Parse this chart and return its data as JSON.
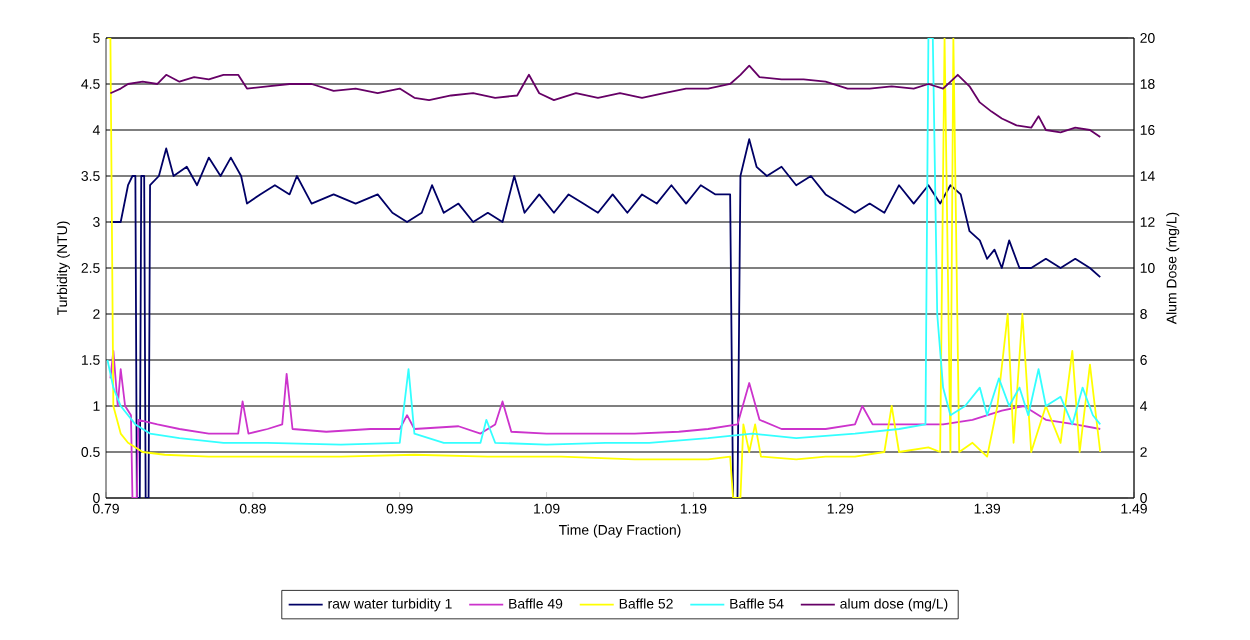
{
  "chart_data": {
    "type": "line",
    "xlabel": "Time (Day Fraction)",
    "ylabel": "Turbidity (NTU)",
    "y2label": "Alum Dose (mg/L)",
    "xlim": [
      0.79,
      1.49
    ],
    "xticks": [
      0.79,
      0.89,
      0.99,
      1.09,
      1.19,
      1.29,
      1.39,
      1.49
    ],
    "ylim": [
      0,
      5
    ],
    "yticks": [
      0,
      0.5,
      1,
      1.5,
      2,
      2.5,
      3,
      3.5,
      4,
      4.5,
      5
    ],
    "y2lim": [
      0,
      20
    ],
    "y2ticks": [
      0,
      2,
      4,
      6,
      8,
      10,
      12,
      14,
      16,
      18,
      20
    ],
    "grid": "y",
    "legend": "bottom",
    "marker": "none",
    "line_style": "solid",
    "series": [
      {
        "name": "raw water turbidity 1",
        "color": "#000066",
        "x": [
          0.793,
          0.8,
          0.805,
          0.808,
          0.81,
          0.811,
          0.813,
          0.814,
          0.816,
          0.817,
          0.819,
          0.82,
          0.826,
          0.831,
          0.836,
          0.845,
          0.852,
          0.86,
          0.868,
          0.875,
          0.882,
          0.886,
          0.895,
          0.905,
          0.915,
          0.92,
          0.93,
          0.945,
          0.96,
          0.975,
          0.985,
          0.995,
          1.005,
          1.012,
          1.02,
          1.03,
          1.04,
          1.05,
          1.06,
          1.068,
          1.075,
          1.085,
          1.095,
          1.105,
          1.115,
          1.125,
          1.135,
          1.145,
          1.155,
          1.165,
          1.175,
          1.185,
          1.195,
          1.205,
          1.215,
          1.217,
          1.22,
          1.222,
          1.228,
          1.233,
          1.24,
          1.25,
          1.26,
          1.27,
          1.28,
          1.29,
          1.3,
          1.31,
          1.32,
          1.33,
          1.34,
          1.35,
          1.358,
          1.365,
          1.372,
          1.378,
          1.385,
          1.39,
          1.395,
          1.4,
          1.405,
          1.412,
          1.42,
          1.43,
          1.44,
          1.45,
          1.46,
          1.467
        ],
        "values": [
          3.0,
          3.0,
          3.4,
          3.5,
          3.5,
          0,
          0,
          3.5,
          3.5,
          0,
          0,
          3.4,
          3.5,
          3.8,
          3.5,
          3.6,
          3.4,
          3.7,
          3.5,
          3.7,
          3.5,
          3.2,
          3.3,
          3.4,
          3.3,
          3.5,
          3.2,
          3.3,
          3.2,
          3.3,
          3.1,
          3.0,
          3.1,
          3.4,
          3.1,
          3.2,
          3.0,
          3.1,
          3.0,
          3.5,
          3.1,
          3.3,
          3.1,
          3.3,
          3.2,
          3.1,
          3.3,
          3.1,
          3.3,
          3.2,
          3.4,
          3.2,
          3.4,
          3.3,
          3.3,
          0,
          0,
          3.5,
          3.9,
          3.6,
          3.5,
          3.6,
          3.4,
          3.5,
          3.3,
          3.2,
          3.1,
          3.2,
          3.1,
          3.4,
          3.2,
          3.4,
          3.2,
          3.4,
          3.3,
          2.9,
          2.8,
          2.6,
          2.7,
          2.5,
          2.8,
          2.5,
          2.5,
          2.6,
          2.5,
          2.6,
          2.5,
          2.4
        ]
      },
      {
        "name": "Baffle 49",
        "color": "#cc33cc",
        "x": [
          0.793,
          0.795,
          0.798,
          0.8,
          0.803,
          0.807,
          0.808,
          0.811,
          0.812,
          0.825,
          0.84,
          0.86,
          0.88,
          0.883,
          0.887,
          0.9,
          0.91,
          0.913,
          0.917,
          0.94,
          0.97,
          0.99,
          0.995,
          1.0,
          1.03,
          1.045,
          1.055,
          1.06,
          1.066,
          1.09,
          1.12,
          1.15,
          1.18,
          1.2,
          1.22,
          1.228,
          1.235,
          1.25,
          1.28,
          1.3,
          1.305,
          1.312,
          1.34,
          1.36,
          1.38,
          1.4,
          1.415,
          1.43,
          1.45,
          1.467
        ],
        "values": [
          1.3,
          1.6,
          1.0,
          1.4,
          1.0,
          0.9,
          0,
          0,
          0.85,
          0.8,
          0.75,
          0.7,
          0.7,
          1.05,
          0.7,
          0.75,
          0.8,
          1.35,
          0.75,
          0.72,
          0.75,
          0.75,
          0.9,
          0.75,
          0.78,
          0.7,
          0.8,
          1.05,
          0.72,
          0.7,
          0.7,
          0.7,
          0.72,
          0.75,
          0.8,
          1.25,
          0.85,
          0.75,
          0.75,
          0.8,
          1.0,
          0.8,
          0.8,
          0.8,
          0.85,
          0.95,
          1.0,
          0.85,
          0.8,
          0.75
        ]
      },
      {
        "name": "Baffle 52",
        "color": "#ffff00",
        "x": [
          0.791,
          0.793,
          0.795,
          0.8,
          0.805,
          0.815,
          0.83,
          0.86,
          0.9,
          0.95,
          1.0,
          1.05,
          1.1,
          1.15,
          1.2,
          1.215,
          1.217,
          1.222,
          1.224,
          1.228,
          1.232,
          1.236,
          1.26,
          1.28,
          1.3,
          1.32,
          1.325,
          1.33,
          1.35,
          1.358,
          1.361,
          1.365,
          1.367,
          1.371,
          1.38,
          1.39,
          1.397,
          1.404,
          1.408,
          1.414,
          1.42,
          1.43,
          1.44,
          1.448,
          1.453,
          1.46,
          1.467
        ],
        "values": [
          5.0,
          5.0,
          1.0,
          0.7,
          0.6,
          0.5,
          0.47,
          0.45,
          0.45,
          0.45,
          0.47,
          0.45,
          0.45,
          0.42,
          0.42,
          0.45,
          0,
          0,
          0.8,
          0.5,
          0.8,
          0.45,
          0.42,
          0.45,
          0.45,
          0.5,
          1.0,
          0.5,
          0.55,
          0.5,
          5.0,
          0.5,
          5.0,
          0.5,
          0.6,
          0.45,
          1.0,
          2.0,
          0.6,
          2.0,
          0.5,
          1.0,
          0.6,
          1.6,
          0.5,
          1.45,
          0.5
        ]
      },
      {
        "name": "Baffle 54",
        "color": "#33ffff",
        "x": [
          0.791,
          0.795,
          0.8,
          0.81,
          0.82,
          0.84,
          0.87,
          0.9,
          0.95,
          0.99,
          0.996,
          1.0,
          1.02,
          1.045,
          1.049,
          1.055,
          1.09,
          1.13,
          1.16,
          1.2,
          1.23,
          1.26,
          1.3,
          1.33,
          1.348,
          1.35,
          1.353,
          1.356,
          1.36,
          1.365,
          1.375,
          1.385,
          1.39,
          1.398,
          1.405,
          1.412,
          1.418,
          1.425,
          1.43,
          1.44,
          1.448,
          1.455,
          1.462,
          1.467
        ],
        "values": [
          1.5,
          1.2,
          1.0,
          0.8,
          0.7,
          0.65,
          0.6,
          0.6,
          0.58,
          0.6,
          1.4,
          0.7,
          0.6,
          0.6,
          0.85,
          0.6,
          0.58,
          0.6,
          0.6,
          0.65,
          0.7,
          0.65,
          0.7,
          0.75,
          0.8,
          5.0,
          5.0,
          2.0,
          1.2,
          0.9,
          1.0,
          1.2,
          0.9,
          1.3,
          1.0,
          1.2,
          0.9,
          1.4,
          1.0,
          1.1,
          0.8,
          1.2,
          0.9,
          0.8
        ]
      },
      {
        "name": "alum dose (mg/L)",
        "color": "#660066",
        "axis": "y2",
        "x": [
          0.793,
          0.8,
          0.805,
          0.815,
          0.825,
          0.831,
          0.84,
          0.85,
          0.86,
          0.87,
          0.88,
          0.886,
          0.9,
          0.915,
          0.93,
          0.945,
          0.96,
          0.975,
          0.99,
          1.0,
          1.01,
          1.025,
          1.04,
          1.055,
          1.07,
          1.078,
          1.085,
          1.095,
          1.11,
          1.125,
          1.14,
          1.155,
          1.17,
          1.185,
          1.2,
          1.215,
          1.222,
          1.228,
          1.235,
          1.25,
          1.265,
          1.28,
          1.295,
          1.31,
          1.325,
          1.34,
          1.35,
          1.36,
          1.37,
          1.378,
          1.385,
          1.393,
          1.4,
          1.41,
          1.42,
          1.425,
          1.43,
          1.44,
          1.45,
          1.46,
          1.467
        ],
        "values": [
          17.6,
          17.8,
          18.0,
          18.1,
          18.0,
          18.4,
          18.1,
          18.3,
          18.2,
          18.4,
          18.4,
          17.8,
          17.9,
          18.0,
          18.0,
          17.7,
          17.8,
          17.6,
          17.8,
          17.4,
          17.3,
          17.5,
          17.6,
          17.4,
          17.5,
          18.4,
          17.6,
          17.3,
          17.6,
          17.4,
          17.6,
          17.4,
          17.6,
          17.8,
          17.8,
          18.0,
          18.4,
          18.8,
          18.3,
          18.2,
          18.2,
          18.1,
          17.8,
          17.8,
          17.9,
          17.8,
          18.0,
          17.8,
          18.4,
          17.9,
          17.2,
          16.8,
          16.5,
          16.2,
          16.1,
          16.6,
          16.0,
          15.9,
          16.1,
          16.0,
          15.7
        ]
      }
    ]
  }
}
